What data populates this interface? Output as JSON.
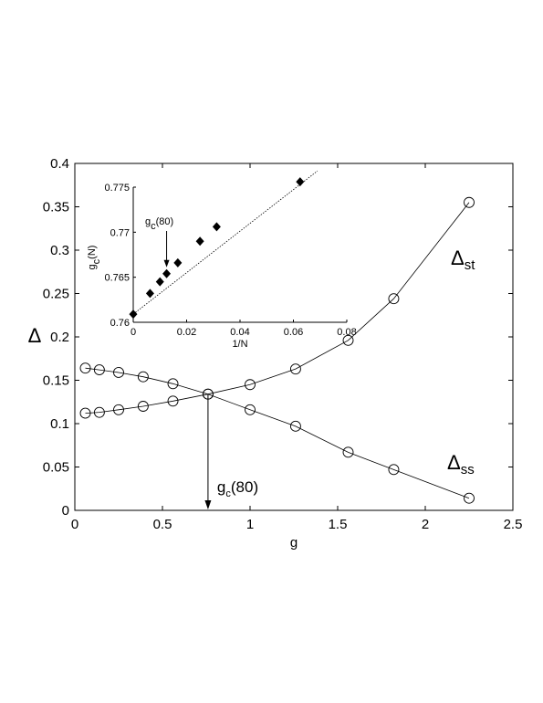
{
  "chart_data": [
    {
      "type": "line",
      "xlabel": "g",
      "ylabel": "Δ",
      "xlim": [
        0,
        2.5
      ],
      "ylim": [
        0,
        0.4
      ],
      "xticks": [
        "0",
        "0.5",
        "1",
        "1.5",
        "2",
        "2.5"
      ],
      "yticks": [
        "0",
        "0.05",
        "0.1",
        "0.15",
        "0.2",
        "0.25",
        "0.3",
        "0.35",
        "0.4"
      ],
      "grid": false,
      "series": [
        {
          "name": "Δst",
          "marker": "open-circle",
          "x": [
            0.06,
            0.14,
            0.25,
            0.39,
            0.56,
            0.76,
            1.0,
            1.26,
            1.56,
            1.82,
            2.25
          ],
          "values": [
            0.112,
            0.113,
            0.116,
            0.12,
            0.126,
            0.134,
            0.145,
            0.163,
            0.196,
            0.244,
            0.355
          ]
        },
        {
          "name": "Δss",
          "marker": "open-circle",
          "x": [
            0.06,
            0.14,
            0.25,
            0.39,
            0.56,
            0.76,
            1.0,
            1.26,
            1.56,
            1.82,
            2.25
          ],
          "values": [
            0.164,
            0.162,
            0.159,
            0.154,
            0.146,
            0.134,
            0.116,
            0.097,
            0.067,
            0.047,
            0.014
          ]
        }
      ],
      "labels": {
        "st": {
          "main": "Δ",
          "sub": "st"
        },
        "ss": {
          "main": "Δ",
          "sub": "ss"
        }
      },
      "annotation": {
        "main": "g",
        "sub": "c",
        "rest": "(80)",
        "x": 0.76,
        "y": 0.134
      }
    },
    {
      "type": "scatter",
      "xlabel": "1/N",
      "ylabel": {
        "main": "g",
        "sub": "c",
        "rest": "(N)"
      },
      "xlim": [
        0,
        0.08
      ],
      "ylim": [
        0.76,
        0.775
      ],
      "xticks": [
        "0",
        "0.02",
        "0.04",
        "0.06",
        "0.08"
      ],
      "yticks": [
        "0.76",
        "0.765",
        "0.77",
        "0.775"
      ],
      "grid": false,
      "series": [
        {
          "marker": "filled-diamond",
          "x": [
            0.0,
            0.0063,
            0.01,
            0.0125,
            0.0167,
            0.025,
            0.03125,
            0.0625
          ],
          "values": [
            0.7609,
            0.7632,
            0.7645,
            0.7654,
            0.7666,
            0.769,
            0.7706,
            0.7756
          ]
        }
      ],
      "fit": {
        "x": [
          0.0,
          0.069
        ],
        "values": [
          0.7609,
          0.7768
        ]
      },
      "annotation": {
        "main": "g",
        "sub": "c",
        "rest": "(80)",
        "x": 0.0125,
        "y": 0.7654
      }
    }
  ]
}
